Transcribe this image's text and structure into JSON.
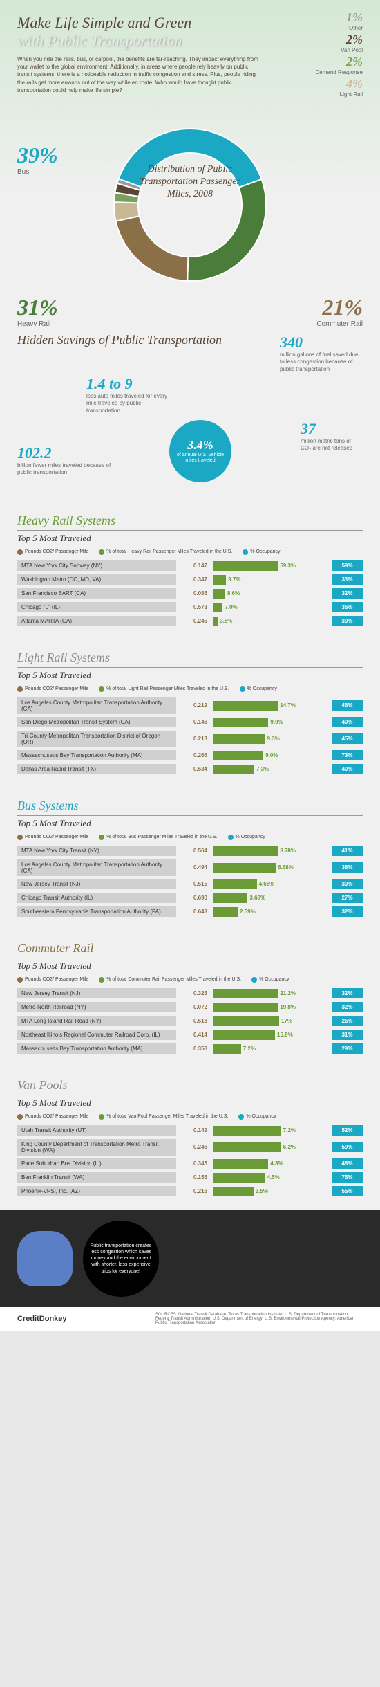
{
  "header": {
    "title_line1": "Make Life Simple and Green",
    "title_line2": "with Public Transportation",
    "intro": "When you ride the rails, bus, or carpool, the benefits are far-reaching. They impact everything from your wallet to the global environment. Additionally, in areas where people rely heavily on public transit systems, there is a noticeable reduction in traffic congestion and stress. Plus, people riding the rails get more errands out of the way while en route. Who would have thought public transportation could help make life simple?"
  },
  "distribution": {
    "title": "Distribution of Public Transportation Passenger Miles, 2008",
    "slices": [
      {
        "label": "Bus",
        "pct": "39%",
        "color": "#1ba8c4",
        "value": 39
      },
      {
        "label": "Heavy Rail",
        "pct": "31%",
        "color": "#4a7c3a",
        "value": 31
      },
      {
        "label": "Commuter Rail",
        "pct": "21%",
        "color": "#8b6f47",
        "value": 21
      },
      {
        "label": "Light Rail",
        "pct": "4%",
        "color": "#c9b896",
        "value": 4
      },
      {
        "label": "Demand Response",
        "pct": "2%",
        "color": "#7aa05c",
        "value": 2
      },
      {
        "label": "Van Pool",
        "pct": "2%",
        "color": "#5b4636",
        "value": 2
      },
      {
        "label": "Other",
        "pct": "1%",
        "color": "#999999",
        "value": 1
      }
    ]
  },
  "hidden": {
    "title": "Hidden Savings of Public Transportation",
    "stats": [
      {
        "num": "340",
        "text": "million gallons of fuel saved due to less congestion because of public transportation"
      },
      {
        "num": "1.4 to 9",
        "text": "less auto miles traveled for every mile traveled by public transportation"
      },
      {
        "num": "102.2",
        "text": "billion fewer miles traveled because of public transportation"
      },
      {
        "num": "37",
        "text": "million metric tons of CO₂ are not released"
      }
    ],
    "circle": {
      "num": "3.4%",
      "text": "of annual U.S. vehicle miles traveled"
    }
  },
  "systems": [
    {
      "title": "Heavy Rail Systems",
      "title_color": "#6b9b37",
      "subtitle": "Top 5 Most Traveled",
      "legend_pct": "% of total Heavy Rail Passenger Miles Traveled in the U.S.",
      "rows": [
        {
          "name": "MTA New York City Subway (NY)",
          "co2": "0.147",
          "pct": "59.3%",
          "pct_w": 100,
          "occ": "59%"
        },
        {
          "name": "Washington Metro (DC, MD, VA)",
          "co2": "0.347",
          "pct": "9.7%",
          "pct_w": 16,
          "occ": "33%"
        },
        {
          "name": "San Francisco BART (CA)",
          "co2": "0.085",
          "pct": "8.6%",
          "pct_w": 15,
          "occ": "32%"
        },
        {
          "name": "Chicago \"L\" (IL)",
          "co2": "0.573",
          "pct": "7.0%",
          "pct_w": 12,
          "occ": "36%"
        },
        {
          "name": "Atlanta MARTA (GA)",
          "co2": "0.245",
          "pct": "3.5%",
          "pct_w": 6,
          "occ": "39%"
        }
      ]
    },
    {
      "title": "Light Rail Systems",
      "title_color": "#8b8b8b",
      "subtitle": "Top 5 Most Traveled",
      "legend_pct": "% of total Light Rail Passenger Miles Traveled in the U.S.",
      "rows": [
        {
          "name": "Los Angeles County Metropolitan Transportation Authority (CA)",
          "co2": "0.219",
          "pct": "14.7%",
          "pct_w": 100,
          "occ": "46%"
        },
        {
          "name": "San Diego Metropolitan Transit System (CA)",
          "co2": "0.146",
          "pct": "9.9%",
          "pct_w": 67,
          "occ": "40%"
        },
        {
          "name": "Tri-County Metropolitan Transportation District of Oregon (OR)",
          "co2": "0.213",
          "pct": "9.3%",
          "pct_w": 63,
          "occ": "45%"
        },
        {
          "name": "Massachusetts Bay Transportation Authority (MA)",
          "co2": "0.266",
          "pct": "9.0%",
          "pct_w": 61,
          "occ": "73%"
        },
        {
          "name": "Dallas Area Rapid Transit (TX)",
          "co2": "0.534",
          "pct": "7.3%",
          "pct_w": 50,
          "occ": "40%"
        }
      ]
    },
    {
      "title": "Bus Systems",
      "title_color": "#1ba8c4",
      "subtitle": "Top 5 Most Traveled",
      "legend_pct": "% of total Bus Passenger Miles Traveled in the U.S.",
      "rows": [
        {
          "name": "MTA New York City Transit (NY)",
          "co2": "0.564",
          "pct": "8.78%",
          "pct_w": 100,
          "occ": "41%"
        },
        {
          "name": "Los Angeles County Metropolitan Transportation Authority (CA)",
          "co2": "0.494",
          "pct": "6.68%",
          "pct_w": 76,
          "occ": "38%"
        },
        {
          "name": "New Jersey Transit (NJ)",
          "co2": "0.515",
          "pct": "4.66%",
          "pct_w": 53,
          "occ": "30%"
        },
        {
          "name": "Chicago Transit Authority (IL)",
          "co2": "0.690",
          "pct": "3.68%",
          "pct_w": 42,
          "occ": "27%"
        },
        {
          "name": "Southeastern Pennsylvania Transportation Authority (PA)",
          "co2": "0.643",
          "pct": "2.59%",
          "pct_w": 30,
          "occ": "32%"
        }
      ]
    },
    {
      "title": "Commuter Rail",
      "title_color": "#8b6f47",
      "subtitle": "Top 5 Most Traveled",
      "legend_pct": "% of total Commuter Rail Passenger Miles Traveled in the U.S.",
      "rows": [
        {
          "name": "New Jersey Transit (NJ)",
          "co2": "0.325",
          "pct": "21.2%",
          "pct_w": 100,
          "occ": "32%"
        },
        {
          "name": "Metro-North Railroad (NY)",
          "co2": "0.072",
          "pct": "19.8%",
          "pct_w": 93,
          "occ": "32%"
        },
        {
          "name": "MTA Long Island Rail Road (NY)",
          "co2": "0.518",
          "pct": "17%",
          "pct_w": 80,
          "occ": "26%"
        },
        {
          "name": "Northeast Illinois Regional Commuter Railroad Corp. (IL)",
          "co2": "0.414",
          "pct": "15.9%",
          "pct_w": 75,
          "occ": "31%"
        },
        {
          "name": "Massachusetts Bay Transportation Authority (MA)",
          "co2": "0.358",
          "pct": "7.2%",
          "pct_w": 34,
          "occ": "29%"
        }
      ]
    },
    {
      "title": "Van Pools",
      "title_color": "#8b8b8b",
      "subtitle": "Top 5 Most Traveled",
      "legend_pct": "% of total Van Pool Passenger Miles Traveled in the U.S.",
      "rows": [
        {
          "name": "Utah Transit Authority (UT)",
          "co2": "0.149",
          "pct": "7.2%",
          "pct_w": 100,
          "occ": "52%"
        },
        {
          "name": "King County Department of Transportation Metro Transit Division (WA)",
          "co2": "0.246",
          "pct": "6.2%",
          "pct_w": 86,
          "occ": "59%"
        },
        {
          "name": "Pace Suburban Bus Division (IL)",
          "co2": "0.345",
          "pct": "4.8%",
          "pct_w": 67,
          "occ": "48%"
        },
        {
          "name": "Ben Franklin Transit (WA)",
          "co2": "0.155",
          "pct": "4.5%",
          "pct_w": 63,
          "occ": "75%"
        },
        {
          "name": "Phoenix-VPSI, Inc. (AZ)",
          "co2": "0.216",
          "pct": "3.5%",
          "pct_w": 49,
          "occ": "55%"
        }
      ]
    }
  ],
  "legend_labels": {
    "co2": "Pounds CO2/ Passenger Mile",
    "occ": "% Occupancy"
  },
  "footer": {
    "bubble": "Public transportation creates less congestion which saves money and the environment with shorter, less expensive trips for everyone!",
    "credit": "CreditDonkey",
    "sources": "SOURCES: National Transit Database; Texas Transportation Institute; U.S. Department of Transportation, Federal Transit Administration; U.S. Department of Energy; U.S. Environmental Protection Agency; American Public Transportation Association"
  },
  "colors": {
    "co2_dot": "#8b6f47",
    "pct_dot": "#6b9b37",
    "occ_dot": "#1ba8c4"
  }
}
